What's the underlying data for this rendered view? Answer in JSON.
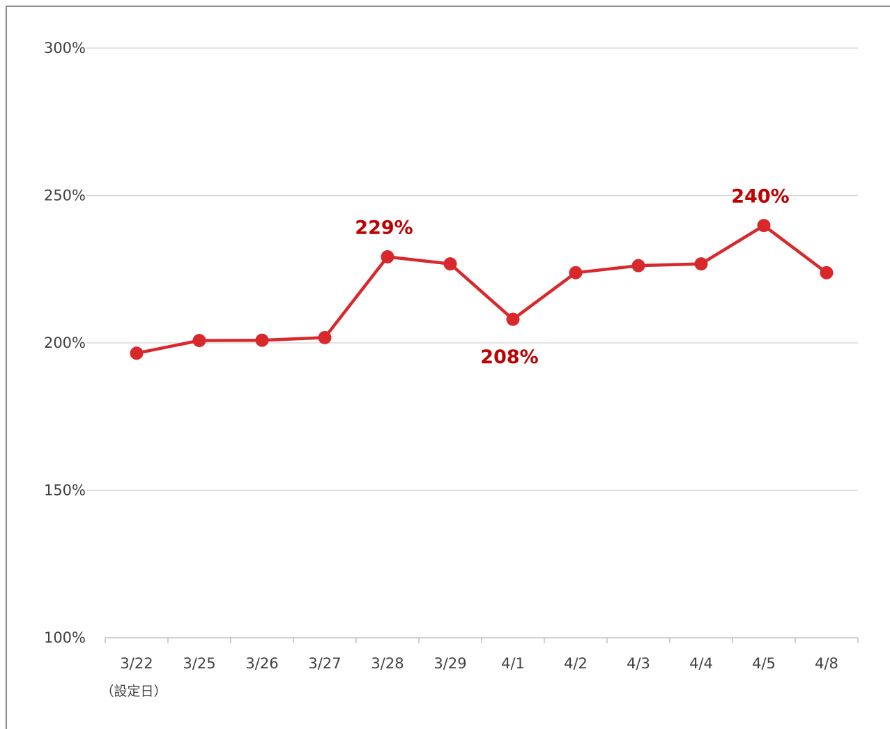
{
  "chart_data": {
    "type": "line",
    "categories": [
      "3/22",
      "3/25",
      "3/26",
      "3/27",
      "3/28",
      "3/29",
      "4/1",
      "4/2",
      "4/3",
      "4/4",
      "4/5",
      "4/8"
    ],
    "category_sublabels": {
      "3/22": "（設定日）"
    },
    "series": [
      {
        "values": [
          196.5,
          200.8,
          200.9,
          201.8,
          229.2,
          226.8,
          208.0,
          223.8,
          226.2,
          226.8,
          239.8,
          223.8
        ],
        "color": "#d9282b"
      }
    ],
    "data_labels": [
      {
        "index": 4,
        "text": "229%",
        "position": "above"
      },
      {
        "index": 6,
        "text": "208%",
        "position": "below"
      },
      {
        "index": 10,
        "text": "240%",
        "position": "above"
      }
    ],
    "ylim": [
      100,
      300
    ],
    "yticks": [
      100,
      150,
      200,
      250,
      300
    ],
    "ytick_suffix": "%",
    "grid": true,
    "legend": "none",
    "label_color": "#c00000",
    "gridline_color": "#d9d9d9",
    "axis_color": "#bfbfbf"
  }
}
